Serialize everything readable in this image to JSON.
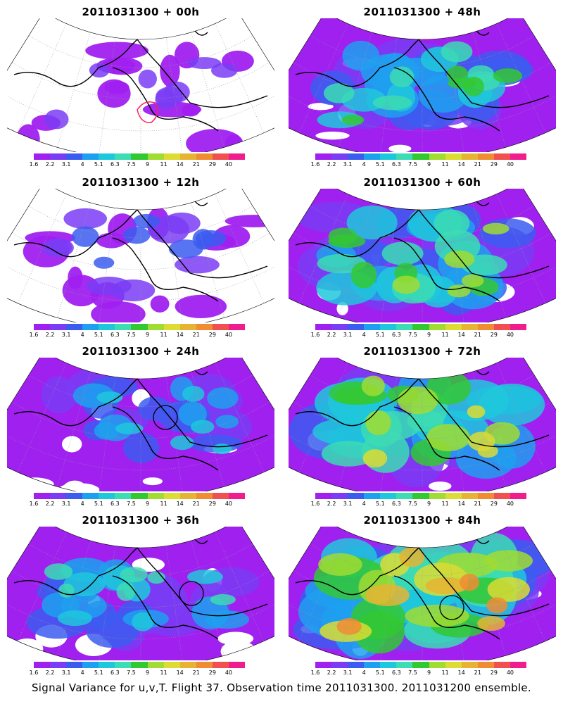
{
  "caption": "Signal Variance for u,v,T. Flight 37. Observation time 2011031300. 2011031200 ensemble.",
  "legend": {
    "labels": [
      "1.6",
      "2.2",
      "3.1",
      "4",
      "5.1",
      "6.3",
      "7.5",
      "9",
      "11",
      "14",
      "21",
      "29",
      "40"
    ],
    "colors": [
      "#a020f0",
      "#7a3cf5",
      "#3c5cf0",
      "#1ea0f0",
      "#1ec8dc",
      "#3cdcb4",
      "#32c832",
      "#a0dc32",
      "#dcdc32",
      "#e6b432",
      "#f08c32",
      "#f05050",
      "#f01e8c"
    ]
  },
  "panels": [
    {
      "title": "2011031300 + 00h",
      "level": 0.05,
      "circle": false,
      "red_contour": true
    },
    {
      "title": "2011031300 + 48h",
      "level": 0.55,
      "circle": false,
      "red_contour": false
    },
    {
      "title": "2011031300 + 12h",
      "level": 0.2,
      "circle": false,
      "red_contour": false
    },
    {
      "title": "2011031300 + 60h",
      "level": 0.65,
      "circle": false,
      "red_contour": false
    },
    {
      "title": "2011031300 + 24h",
      "level": 0.35,
      "circle": true,
      "red_contour": false
    },
    {
      "title": "2011031300 + 72h",
      "level": 0.8,
      "circle": false,
      "red_contour": false
    },
    {
      "title": "2011031300 + 36h",
      "level": 0.45,
      "circle": true,
      "red_contour": false
    },
    {
      "title": "2011031300 + 84h",
      "level": 0.95,
      "circle": true,
      "red_contour": false
    }
  ]
}
